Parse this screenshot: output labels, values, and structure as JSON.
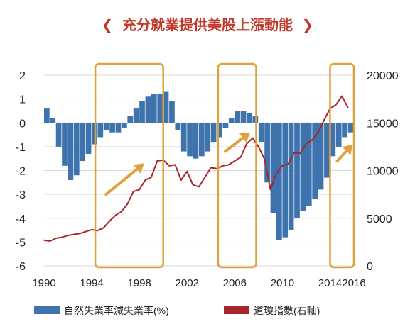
{
  "chart_data": {
    "type": "bar",
    "title": "充分就業提供美股上漲動能",
    "title_marks": {
      "left": "❮",
      "right": "❯"
    },
    "title_color": "#c0392b",
    "x_ticks": [
      "1990",
      "1994",
      "1998",
      "2002",
      "2006",
      "2010",
      "2014",
      "2016"
    ],
    "x_range": [
      1990,
      2016
    ],
    "y_left_ticks": [
      "2",
      "1",
      "0",
      "-1",
      "-2",
      "-3",
      "-4",
      "-5",
      "-6"
    ],
    "y_left_range": [
      -6,
      2
    ],
    "y_right_ticks": [
      "20000",
      "15000",
      "10000",
      "5000",
      "0"
    ],
    "y_right_range": [
      0,
      20000
    ],
    "grid": "horizontal",
    "legend_position": "bottom",
    "highlight_color": "#e0a13a",
    "highlight_boxes": [
      {
        "x_start": 1994.3,
        "x_end": 2000.0
      },
      {
        "x_start": 2004.6,
        "x_end": 2007.8
      },
      {
        "x_start": 2014.0,
        "x_end": 2016.0
      }
    ],
    "arrows": [
      {
        "from": [
          1995.2,
          -3.0
        ],
        "to": [
          1998.4,
          -1.7
        ]
      },
      {
        "from": [
          2005.2,
          -1.2
        ],
        "to": [
          2007.3,
          -0.4
        ]
      },
      {
        "from": [
          2014.6,
          -1.6
        ],
        "to": [
          2015.9,
          -0.9
        ]
      }
    ],
    "series": [
      {
        "name": "自然失業率減失業率(%)",
        "type": "bar",
        "axis": "left",
        "color": "#3e73ae",
        "x": [
          1990.0,
          1990.5,
          1991.0,
          1991.5,
          1992.0,
          1992.5,
          1993.0,
          1993.5,
          1994.0,
          1994.5,
          1995.0,
          1995.5,
          1996.0,
          1996.5,
          1997.0,
          1997.5,
          1998.0,
          1998.5,
          1999.0,
          1999.5,
          2000.0,
          2000.5,
          2001.0,
          2001.5,
          2002.0,
          2002.5,
          2003.0,
          2003.5,
          2004.0,
          2004.5,
          2005.0,
          2005.5,
          2006.0,
          2006.5,
          2007.0,
          2007.5,
          2008.0,
          2008.5,
          2009.0,
          2009.5,
          2010.0,
          2010.5,
          2011.0,
          2011.5,
          2012.0,
          2012.5,
          2013.0,
          2013.5,
          2014.0,
          2014.5,
          2015.0,
          2015.5
        ],
        "values": [
          0.6,
          0.2,
          -1.0,
          -1.8,
          -2.4,
          -2.2,
          -1.6,
          -1.3,
          -0.9,
          -0.6,
          -0.3,
          -0.4,
          -0.4,
          -0.2,
          0.3,
          0.6,
          0.9,
          1.1,
          1.2,
          1.2,
          1.3,
          0.9,
          -0.3,
          -1.2,
          -1.4,
          -1.5,
          -1.4,
          -1.2,
          -0.8,
          -0.6,
          -0.2,
          0.2,
          0.5,
          0.5,
          0.4,
          0.3,
          -0.8,
          -2.5,
          -3.8,
          -4.9,
          -4.8,
          -4.5,
          -4.0,
          -3.7,
          -3.5,
          -3.2,
          -2.8,
          -2.3,
          -1.4,
          -1.0,
          -0.6,
          -0.4
        ]
      },
      {
        "name": "道瓊指數(右軸)",
        "type": "line",
        "axis": "right",
        "color": "#a8262b",
        "x": [
          1990.0,
          1990.5,
          1991.0,
          1991.5,
          1992.0,
          1992.5,
          1993.0,
          1993.5,
          1994.0,
          1994.5,
          1995.0,
          1995.5,
          1996.0,
          1996.5,
          1997.0,
          1997.5,
          1998.0,
          1998.5,
          1999.0,
          1999.5,
          2000.0,
          2000.5,
          2001.0,
          2001.5,
          2002.0,
          2002.5,
          2003.0,
          2003.5,
          2004.0,
          2004.5,
          2005.0,
          2005.5,
          2006.0,
          2006.5,
          2007.0,
          2007.5,
          2008.0,
          2008.5,
          2009.0,
          2009.5,
          2010.0,
          2010.5,
          2011.0,
          2011.5,
          2012.0,
          2012.5,
          2013.0,
          2013.5,
          2014.0,
          2014.5,
          2015.0,
          2015.5
        ],
        "values": [
          2700,
          2600,
          2900,
          3000,
          3200,
          3300,
          3400,
          3600,
          3800,
          3700,
          4000,
          4700,
          5300,
          5700,
          6500,
          7800,
          8000,
          9000,
          9300,
          11000,
          11100,
          10500,
          10600,
          9000,
          9900,
          8500,
          8300,
          9300,
          10300,
          10200,
          10500,
          10600,
          11000,
          11400,
          12800,
          13400,
          12500,
          11200,
          8000,
          9700,
          10500,
          10700,
          11900,
          11800,
          12800,
          13200,
          14000,
          15300,
          16500,
          16900,
          17800,
          16600
        ]
      }
    ]
  }
}
